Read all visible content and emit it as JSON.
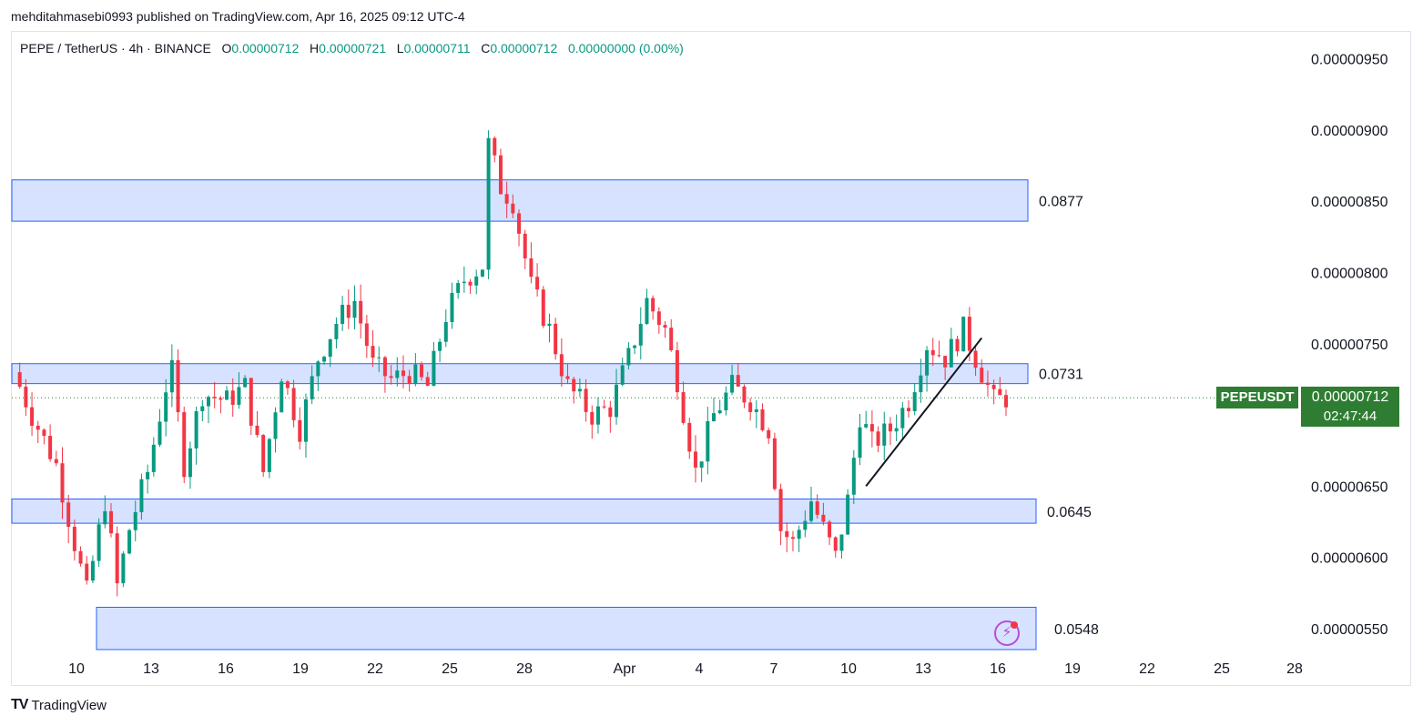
{
  "header": {
    "published_line": "mehditahmasebi0993 published on TradingView.com, Apr 16, 2025 09:12 UTC-4"
  },
  "legend": {
    "symbol": "PEPE / TetherUS · 4h · BINANCE",
    "open_key": "O",
    "open": "0.00000712",
    "high_key": "H",
    "high": "0.00000721",
    "low_key": "L",
    "low": "0.00000711",
    "close_key": "C",
    "close": "0.00000712",
    "change": "0.00000000 (0.00%)"
  },
  "price_axis": {
    "labels": [
      "0.00000950",
      "0.00000900",
      "0.00000850",
      "0.00000800",
      "0.00000750",
      "0.00000650",
      "0.00000600",
      "0.00000550"
    ]
  },
  "time_axis": {
    "labels": [
      "10",
      "13",
      "16",
      "19",
      "22",
      "25",
      "28",
      "Apr",
      "4",
      "7",
      "10",
      "13",
      "16",
      "19",
      "22",
      "25",
      "28"
    ]
  },
  "zones": [
    {
      "label": "0.0877",
      "top": 8.65e-06,
      "bottom": 8.36e-06
    },
    {
      "label": "0.0731",
      "top": 7.36e-06,
      "bottom": 7.22e-06
    },
    {
      "label": "0.0645",
      "top": 6.41e-06,
      "bottom": 6.24e-06
    },
    {
      "label": "0.0548",
      "top": 5.65e-06,
      "bottom": 5.35e-06
    }
  ],
  "current": {
    "symbol_tag": "PEPEUSDT",
    "price": "0.00000712",
    "countdown": "02:47:44",
    "value": 7.12e-06
  },
  "footer": {
    "brand": "TradingView",
    "logo_mark": "TV"
  },
  "colors": {
    "up": "#089981",
    "down": "#f23645",
    "zone_fill": "#d6e2ff",
    "zone_border": "#2962ff",
    "badge": "#2e7d32"
  },
  "chart_data": {
    "type": "candlestick",
    "timeframe": "4h",
    "pair": "PEPE / TetherUS",
    "exchange": "BINANCE",
    "y_range": [
      5.35e-06,
      9.65e-06
    ],
    "series_path": [
      [
        0,
        7.3e-06
      ],
      [
        6,
        7e-06
      ],
      [
        14,
        6.65e-06
      ],
      [
        20,
        6.1e-06
      ],
      [
        24,
        5.75e-06
      ],
      [
        30,
        6.4e-06
      ],
      [
        34,
        5.8e-06
      ],
      [
        38,
        6.2e-06
      ],
      [
        44,
        6.6e-06
      ],
      [
        50,
        7.2e-06
      ],
      [
        52,
        7.3e-06
      ],
      [
        56,
        6.65e-06
      ],
      [
        62,
        7.15e-06
      ],
      [
        70,
        7.1e-06
      ],
      [
        76,
        7.2e-06
      ],
      [
        82,
        6.6e-06
      ],
      [
        88,
        7.3e-06
      ],
      [
        94,
        6.9e-06
      ],
      [
        100,
        7.4e-06
      ],
      [
        106,
        7.65e-06
      ],
      [
        112,
        7.8e-06
      ],
      [
        118,
        7.35e-06
      ],
      [
        124,
        7.25e-06
      ],
      [
        130,
        7.3e-06
      ],
      [
        136,
        7.2e-06
      ],
      [
        142,
        7.7e-06
      ],
      [
        148,
        7.95e-06
      ],
      [
        154,
        8.05e-06
      ],
      [
        156,
        8.9e-06
      ],
      [
        160,
        8.6e-06
      ],
      [
        164,
        8.5e-06
      ],
      [
        170,
        7.9e-06
      ],
      [
        176,
        7.6e-06
      ],
      [
        182,
        7.2e-06
      ],
      [
        190,
        7e-06
      ],
      [
        196,
        7.05e-06
      ],
      [
        202,
        7.4e-06
      ],
      [
        208,
        7.8e-06
      ],
      [
        214,
        7.6e-06
      ],
      [
        218,
        7.25e-06
      ],
      [
        224,
        6.6e-06
      ],
      [
        230,
        7e-06
      ],
      [
        236,
        7.2e-06
      ],
      [
        242,
        7.1e-06
      ],
      [
        248,
        6.9e-06
      ],
      [
        252,
        6.2e-06
      ],
      [
        256,
        6.1e-06
      ],
      [
        262,
        6.4e-06
      ],
      [
        266,
        6.2e-06
      ],
      [
        270,
        6e-06
      ],
      [
        274,
        6.4e-06
      ],
      [
        278,
        7e-06
      ],
      [
        282,
        6.8e-06
      ],
      [
        288,
        6.9e-06
      ],
      [
        294,
        7.1e-06
      ],
      [
        300,
        7.5e-06
      ],
      [
        306,
        7.4e-06
      ],
      [
        312,
        7.6e-06
      ],
      [
        316,
        7.4e-06
      ],
      [
        322,
        7.1e-06
      ],
      [
        326,
        7.12e-06
      ]
    ],
    "trendline": {
      "from": [
        280,
        6.5e-06
      ],
      "to": [
        318,
        7.54e-06
      ]
    }
  }
}
